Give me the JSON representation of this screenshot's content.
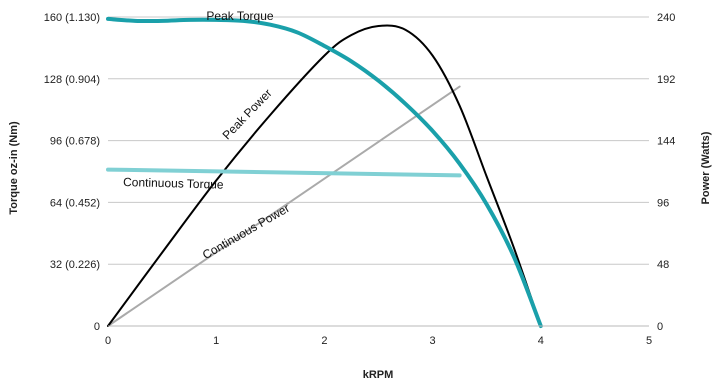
{
  "chart_data": {
    "type": "line",
    "xlabel": "kRPM",
    "ylabel": "Torque oz-in (Nm)",
    "y2label": "Power (Watts)",
    "xlim": [
      0,
      5
    ],
    "ylim": [
      0,
      160
    ],
    "y2lim": [
      0,
      240
    ],
    "grid": true,
    "x_ticks": [
      "0",
      "1",
      "2",
      "3",
      "4",
      "5"
    ],
    "y_ticks": [
      "0",
      "32 (0.226)",
      "64 (0.452)",
      "96 (0.678)",
      "128 (0.904)",
      "160 (1.130)"
    ],
    "y2_ticks": [
      "0",
      "48",
      "96",
      "144",
      "192",
      "240"
    ],
    "colors": {
      "peak_torque": "#1aa0aa",
      "continuous_torque": "#80d0d4",
      "peak_power": "#000000",
      "continuous_power": "#aaaaaa",
      "grid": "#c8c8c8"
    },
    "series": [
      {
        "name": "Peak Torque",
        "axis": "left",
        "x": [
          0,
          0.25,
          0.5,
          0.75,
          1.0,
          1.25,
          1.5,
          1.75,
          2.0,
          2.25,
          2.5,
          2.75,
          3.0,
          3.25,
          3.5,
          3.75,
          4.0
        ],
        "y": [
          159,
          158,
          158,
          158.5,
          158.5,
          158,
          156,
          152,
          145,
          137,
          127,
          115,
          101,
          84,
          63,
          36,
          0
        ]
      },
      {
        "name": "Continuous Torque",
        "axis": "left",
        "x": [
          0,
          3.25
        ],
        "y": [
          81,
          78
        ]
      },
      {
        "name": "Peak Power",
        "axis": "right",
        "x": [
          0,
          0.5,
          1.0,
          1.5,
          2.0,
          2.25,
          2.5,
          2.75,
          3.0,
          3.25,
          3.5,
          3.75,
          4.0
        ],
        "y": [
          0,
          57,
          113,
          164,
          210,
          226,
          233,
          230,
          210,
          171,
          116,
          61,
          0
        ]
      },
      {
        "name": "Continuous Power",
        "axis": "right",
        "x": [
          0,
          3.25
        ],
        "y": [
          0,
          186
        ]
      }
    ]
  }
}
